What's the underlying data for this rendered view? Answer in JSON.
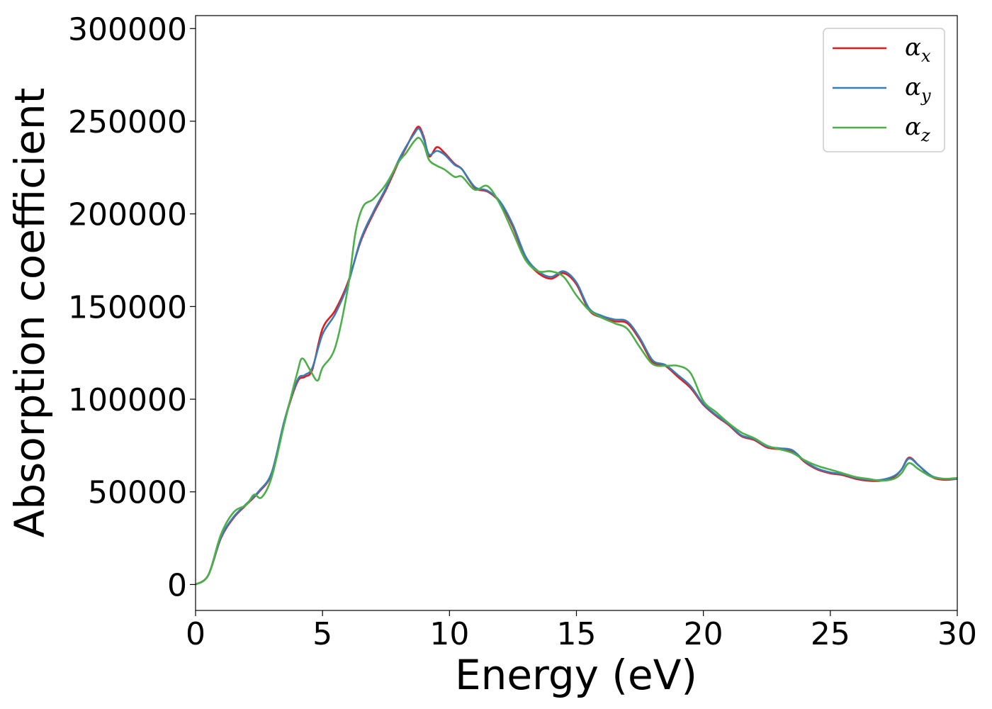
{
  "chart_data": {
    "type": "line",
    "xlabel": "Energy (eV)",
    "ylabel": "Absorption coefficient",
    "xlim": [
      0,
      30
    ],
    "ylim": [
      -14000,
      307000
    ],
    "x_ticks": [
      0,
      5,
      10,
      15,
      20,
      25,
      30
    ],
    "y_ticks": [
      0,
      50000,
      100000,
      150000,
      200000,
      250000,
      300000
    ],
    "grid": false,
    "legend_position": "top-right",
    "series": [
      {
        "name": "α",
        "subscript": "x",
        "color": "#e41a1c",
        "x": [
          0,
          0.5,
          1.0,
          1.5,
          2.0,
          2.5,
          3.0,
          3.5,
          4.0,
          4.3,
          4.6,
          5.0,
          5.5,
          6.0,
          6.5,
          7.0,
          7.5,
          8.0,
          8.3,
          8.6,
          8.8,
          9.0,
          9.2,
          9.5,
          9.8,
          10.2,
          10.5,
          11.0,
          11.5,
          12.0,
          12.5,
          13.0,
          13.5,
          14.0,
          14.5,
          15.0,
          15.5,
          16.0,
          16.5,
          17.0,
          17.5,
          18.0,
          18.5,
          19.0,
          19.5,
          20.0,
          20.5,
          21.0,
          21.5,
          22.0,
          22.5,
          23.0,
          23.5,
          24.0,
          24.5,
          25.0,
          25.5,
          26.0,
          26.5,
          27.0,
          27.5,
          27.8,
          28.1,
          28.5,
          29.0,
          29.5,
          30.0
        ],
        "values": [
          0,
          5000,
          25000,
          36000,
          43000,
          50000,
          60000,
          88000,
          109000,
          112000,
          116000,
          138000,
          148000,
          163000,
          185000,
          200000,
          213000,
          228000,
          236000,
          244000,
          247000,
          241000,
          231000,
          236000,
          233000,
          227000,
          224000,
          214000,
          212000,
          206000,
          193000,
          176000,
          168000,
          165000,
          168000,
          162000,
          148000,
          144000,
          142000,
          141000,
          132000,
          120000,
          118000,
          112000,
          106000,
          97000,
          91000,
          86000,
          80000,
          78000,
          74000,
          73000,
          72000,
          66000,
          62000,
          60000,
          59000,
          57000,
          56000,
          56000,
          58000,
          62000,
          68500,
          64000,
          58000,
          56500,
          57000
        ]
      },
      {
        "name": "α",
        "subscript": "y",
        "color": "#377eb8",
        "x": [
          0,
          0.5,
          1.0,
          1.5,
          2.0,
          2.5,
          3.0,
          3.5,
          4.0,
          4.3,
          4.6,
          5.0,
          5.5,
          6.0,
          6.5,
          7.0,
          7.5,
          8.0,
          8.3,
          8.6,
          8.8,
          9.0,
          9.2,
          9.5,
          9.8,
          10.2,
          10.5,
          11.0,
          11.5,
          12.0,
          12.5,
          13.0,
          13.5,
          14.0,
          14.5,
          15.0,
          15.5,
          16.0,
          16.5,
          17.0,
          17.5,
          18.0,
          18.5,
          19.0,
          19.5,
          20.0,
          20.5,
          21.0,
          21.5,
          22.0,
          22.5,
          23.0,
          23.5,
          24.0,
          24.5,
          25.0,
          25.5,
          26.0,
          26.5,
          27.0,
          27.5,
          27.8,
          28.1,
          28.5,
          29.0,
          29.5,
          30.0
        ],
        "values": [
          0,
          5000,
          25500,
          36500,
          43500,
          50500,
          60500,
          88500,
          110000,
          113000,
          117000,
          135000,
          146000,
          162000,
          186000,
          201000,
          214000,
          229000,
          236500,
          243000,
          246000,
          240000,
          232000,
          234000,
          232000,
          226500,
          224000,
          214500,
          212500,
          206500,
          194000,
          177000,
          169000,
          166000,
          169000,
          163000,
          149000,
          145000,
          143000,
          142000,
          133000,
          121000,
          118500,
          113000,
          107000,
          97500,
          91500,
          86500,
          80500,
          78500,
          74500,
          73500,
          72500,
          66500,
          62500,
          60500,
          59500,
          57500,
          56500,
          56500,
          58500,
          62000,
          68000,
          64000,
          58500,
          57000,
          57000
        ]
      },
      {
        "name": "α",
        "subscript": "z",
        "color": "#4daf4a",
        "x": [
          0,
          0.5,
          1.0,
          1.5,
          2.0,
          2.3,
          2.6,
          3.0,
          3.5,
          4.0,
          4.2,
          4.5,
          4.8,
          5.0,
          5.5,
          6.0,
          6.3,
          6.6,
          7.0,
          7.5,
          8.0,
          8.3,
          8.6,
          8.8,
          9.0,
          9.2,
          9.5,
          9.8,
          10.2,
          10.5,
          11.0,
          11.5,
          12.0,
          12.5,
          13.0,
          13.5,
          14.0,
          14.5,
          15.0,
          15.5,
          16.0,
          16.5,
          17.0,
          17.5,
          18.0,
          18.5,
          19.0,
          19.5,
          20.0,
          20.5,
          21.0,
          21.5,
          22.0,
          22.5,
          23.0,
          23.5,
          24.0,
          24.5,
          25.0,
          25.5,
          26.0,
          26.5,
          27.0,
          27.5,
          27.8,
          28.1,
          28.5,
          29.0,
          29.5,
          30.0
        ],
        "values": [
          0,
          5000,
          27000,
          39000,
          43000,
          48500,
          47000,
          58000,
          87000,
          114000,
          122000,
          116000,
          110000,
          117000,
          128000,
          160000,
          190000,
          204000,
          208000,
          216000,
          228000,
          233000,
          239000,
          241000,
          237000,
          229000,
          226000,
          224000,
          220000,
          220000,
          213000,
          215000,
          205000,
          190000,
          175000,
          169000,
          169000,
          166000,
          156000,
          148000,
          144000,
          141000,
          138000,
          128000,
          119000,
          118000,
          118000,
          114000,
          99000,
          93000,
          87000,
          82000,
          79000,
          75000,
          73000,
          71000,
          67000,
          64000,
          62000,
          60000,
          58000,
          57000,
          56000,
          57000,
          60000,
          65500,
          62000,
          58000,
          57000,
          57500
        ]
      }
    ]
  }
}
